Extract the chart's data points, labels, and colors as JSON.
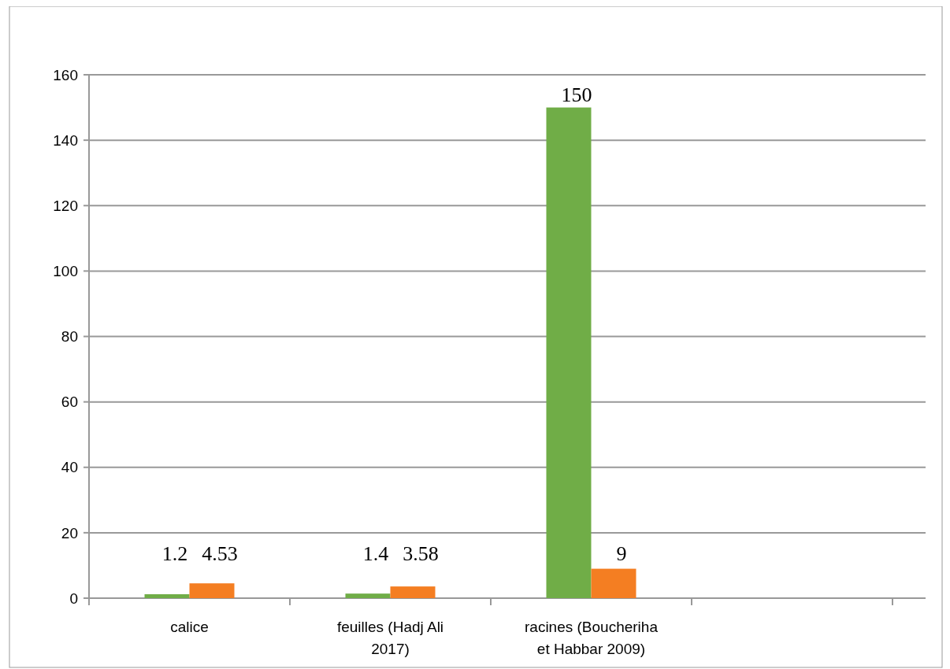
{
  "chart_data": {
    "type": "bar",
    "categories": [
      "calice",
      "feuilles (Hadj Ali 2017)",
      "racines (Boucheriha et Habbar 2009)",
      null
    ],
    "series": [
      {
        "color": "#70ad47",
        "values": [
          1.2,
          1.4,
          150,
          null
        ]
      },
      {
        "color": "#f47e22",
        "values": [
          4.53,
          3.58,
          9,
          null
        ]
      }
    ],
    "ylim": [
      0,
      160
    ],
    "yticks": [
      0,
      20,
      40,
      60,
      80,
      100,
      120,
      140,
      160
    ],
    "grid": true,
    "data_labels": true
  }
}
